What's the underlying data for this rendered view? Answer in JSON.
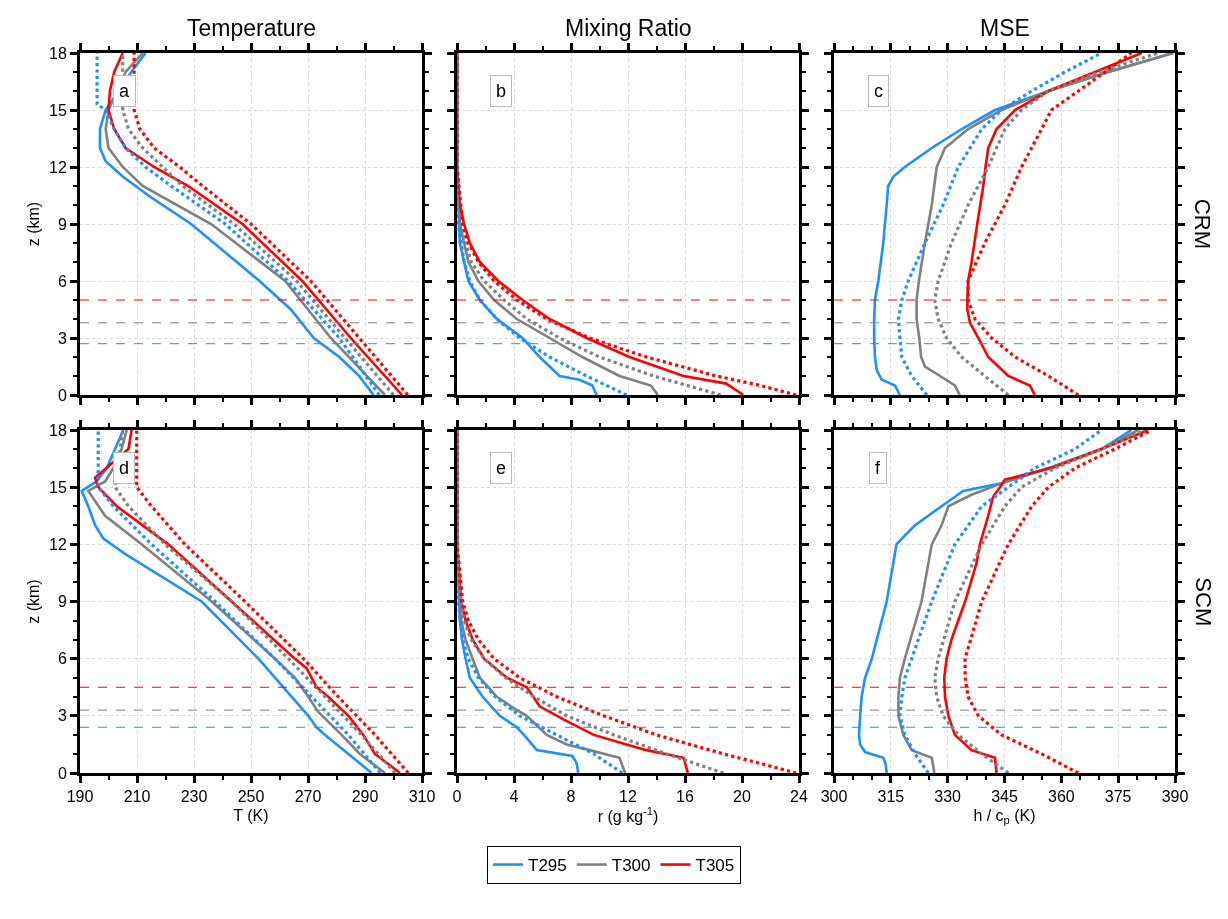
{
  "chart_data": [
    {
      "type": "line",
      "title": "Temperature",
      "ylabel": "z (km)",
      "annotations": [
        "a"
      ],
      "grid": true,
      "legend": "bottom",
      "tick_labels": "y",
      "xlim": [
        190,
        310
      ],
      "xticks": [
        190,
        {
          "value": 200,
          "label": null
        },
        210,
        {
          "value": 220,
          "label": null
        },
        230,
        {
          "value": 240,
          "label": null
        },
        250,
        {
          "value": 260,
          "label": null
        },
        270,
        {
          "value": 280,
          "label": null
        },
        290,
        {
          "value": 300,
          "label": null
        },
        310
      ],
      "ylim": [
        0,
        18
      ],
      "yticks": [
        0,
        {
          "value": 1,
          "label": null
        },
        {
          "value": 2,
          "label": null
        },
        3,
        {
          "value": 4,
          "label": null
        },
        {
          "value": 5,
          "label": null
        },
        6,
        {
          "value": 7,
          "label": null
        },
        {
          "value": 8,
          "label": null
        },
        9,
        {
          "value": 10,
          "label": null
        },
        {
          "value": 11,
          "label": null
        },
        12,
        {
          "value": 13,
          "label": null
        },
        {
          "value": 14,
          "label": null
        },
        15,
        {
          "value": 16,
          "label": null
        },
        {
          "value": 17,
          "label": null
        },
        18
      ],
      "ref_lines": [
        {
          "axis": "y",
          "value": 5.0,
          "color": "#ff0000",
          "line_style": "dashed"
        },
        {
          "axis": "y",
          "value": 3.8,
          "color": "#808080",
          "line_style": "dashed"
        },
        {
          "axis": "y",
          "value": 2.7,
          "color": "#1e90ff",
          "line_style": "dashed"
        }
      ],
      "series": [
        {
          "name": "T295",
          "color": "#1e90ff",
          "line_style": "solid",
          "x": [
            293,
            288,
            281,
            272,
            264,
            253,
            241,
            229,
            214,
            205,
            199,
            197,
            197,
            199,
            208,
            213
          ],
          "values": [
            0,
            1,
            2,
            3,
            4.5,
            6,
            7.5,
            9,
            10.5,
            11.5,
            12.3,
            13,
            14,
            15,
            17,
            18
          ]
        },
        {
          "name": "T300",
          "color": "#808080",
          "line_style": "solid",
          "x": [
            297,
            278,
            262,
            236,
            212,
            205,
            200,
            199,
            200,
            206,
            212
          ],
          "values": [
            0,
            3,
            6,
            9,
            11,
            12,
            13,
            14,
            15,
            17,
            18
          ]
        },
        {
          "name": "T305",
          "color": "#ff0000",
          "line_style": "solid",
          "x": [
            303,
            285,
            268,
            247,
            228,
            216,
            206,
            202,
            200,
            200.5,
            202,
            205
          ],
          "values": [
            0,
            3,
            6,
            9,
            11,
            12,
            13,
            14,
            15,
            16,
            17,
            18
          ]
        },
        {
          "color": "#1e90ff",
          "line_style": "dotted",
          "x": [
            295,
            281,
            263,
            241,
            222,
            213,
            206,
            202,
            199,
            196,
            196
          ],
          "values": [
            0,
            3,
            6,
            9,
            11,
            12,
            13,
            14,
            15,
            15.3,
            18
          ]
        },
        {
          "color": "#808080",
          "line_style": "dotted",
          "x": [
            300,
            283,
            266,
            244,
            226,
            219,
            212,
            207,
            205,
            205
          ],
          "values": [
            0,
            3,
            6,
            9,
            11,
            12,
            13,
            14,
            15,
            18
          ]
        },
        {
          "color": "#ff0000",
          "line_style": "dotted",
          "x": [
            305,
            288,
            271,
            250,
            233,
            225,
            216,
            211,
            209,
            209
          ],
          "values": [
            0,
            3,
            6,
            9,
            11,
            12,
            13,
            14,
            15,
            18
          ]
        }
      ]
    },
    {
      "type": "line",
      "title": "Mixing Ratio",
      "annotations": [
        "b"
      ],
      "grid": true,
      "tick_labels": false,
      "xlim": [
        0,
        24
      ],
      "xticks": [
        0,
        {
          "value": 2,
          "label": null
        },
        4,
        {
          "value": 6,
          "label": null
        },
        8,
        {
          "value": 10,
          "label": null
        },
        12,
        {
          "value": 14,
          "label": null
        },
        16,
        {
          "value": 18,
          "label": null
        },
        20,
        {
          "value": 22,
          "label": null
        },
        24
      ],
      "ylim": [
        0,
        18
      ],
      "yticks": [
        0,
        {
          "value": 1,
          "label": null
        },
        {
          "value": 2,
          "label": null
        },
        3,
        {
          "value": 4,
          "label": null
        },
        {
          "value": 5,
          "label": null
        },
        6,
        {
          "value": 7,
          "label": null
        },
        {
          "value": 8,
          "label": null
        },
        9,
        {
          "value": 10,
          "label": null
        },
        {
          "value": 11,
          "label": null
        },
        12,
        {
          "value": 13,
          "label": null
        },
        {
          "value": 14,
          "label": null
        },
        15,
        {
          "value": 16,
          "label": null
        },
        {
          "value": 17,
          "label": null
        },
        18
      ],
      "ref_lines": [
        {
          "axis": "y",
          "value": 5.0,
          "color": "#ff0000",
          "line_style": "dashed"
        },
        {
          "axis": "y",
          "value": 3.8,
          "color": "#808080",
          "line_style": "dashed"
        },
        {
          "axis": "y",
          "value": 2.7,
          "color": "#1e90ff",
          "line_style": "dashed"
        }
      ],
      "series": [
        {
          "color": "#1e90ff",
          "line_style": "solid",
          "x": [
            9.8,
            9.5,
            8.6,
            7.2,
            5.8,
            4.6,
            2.8,
            1.6,
            0.8,
            0.5,
            0.2,
            0,
            0
          ],
          "values": [
            0,
            0.5,
            0.8,
            1,
            2,
            3,
            4,
            5,
            6,
            7,
            8,
            12,
            18
          ]
        },
        {
          "color": "#808080",
          "line_style": "solid",
          "x": [
            14.1,
            13.6,
            11.4,
            8.8,
            6.5,
            4.2,
            2.6,
            1.5,
            0.8,
            0.5,
            0.2,
            0,
            0
          ],
          "values": [
            0,
            0.5,
            1,
            2,
            3,
            4,
            5,
            6,
            7,
            8,
            9,
            12,
            18
          ]
        },
        {
          "color": "#ff0000",
          "line_style": "solid",
          "x": [
            20.1,
            18.9,
            15.9,
            12.1,
            9.1,
            6.5,
            4.6,
            2.9,
            1.6,
            0.9,
            0.5,
            0.2,
            0,
            0
          ],
          "values": [
            0,
            0.6,
            1,
            2,
            3,
            4,
            5,
            6,
            7,
            8,
            9,
            10,
            12,
            18
          ]
        },
        {
          "color": "#1e90ff",
          "line_style": "dotted",
          "x": [
            11.9,
            9.1,
            6.5,
            4.4,
            2.8,
            1.6,
            0.9,
            0.5,
            0.1,
            0,
            0
          ],
          "values": [
            0,
            1,
            2,
            3,
            4,
            5,
            6,
            7,
            9,
            12,
            18
          ]
        },
        {
          "color": "#808080",
          "line_style": "dotted",
          "x": [
            18.5,
            13.8,
            10,
            7.2,
            4.9,
            3.3,
            1.9,
            1.0,
            0.6,
            0.3,
            0,
            0
          ],
          "values": [
            0,
            1,
            2,
            3,
            4,
            5,
            6,
            7,
            8,
            9,
            12,
            18
          ]
        },
        {
          "color": "#ff0000",
          "line_style": "dotted",
          "x": [
            23.8,
            21.3,
            18.2,
            13.3,
            9.3,
            6.3,
            4.2,
            2.6,
            1.5,
            0.8,
            0.4,
            0,
            0
          ],
          "values": [
            0,
            0.5,
            1,
            2,
            3,
            4,
            5,
            6,
            7,
            8,
            9,
            12,
            18
          ]
        }
      ]
    },
    {
      "type": "line",
      "title": "MSE",
      "annotations": [
        "c",
        "CRM"
      ],
      "grid": true,
      "tick_labels": false,
      "xlim": [
        300,
        390
      ],
      "xticks": [
        300,
        {
          "value": 305,
          "label": null
        },
        {
          "value": 310,
          "label": null
        },
        315,
        {
          "value": 320,
          "label": null
        },
        {
          "value": 325,
          "label": null
        },
        330,
        {
          "value": 335,
          "label": null
        },
        {
          "value": 340,
          "label": null
        },
        345,
        {
          "value": 350,
          "label": null
        },
        {
          "value": 355,
          "label": null
        },
        360,
        {
          "value": 365,
          "label": null
        },
        {
          "value": 370,
          "label": null
        },
        375,
        {
          "value": 380,
          "label": null
        },
        {
          "value": 385,
          "label": null
        },
        390
      ],
      "ylim": [
        0,
        18
      ],
      "yticks": [
        0,
        {
          "value": 1,
          "label": null
        },
        {
          "value": 2,
          "label": null
        },
        3,
        {
          "value": 4,
          "label": null
        },
        {
          "value": 5,
          "label": null
        },
        6,
        {
          "value": 7,
          "label": null
        },
        {
          "value": 8,
          "label": null
        },
        9,
        {
          "value": 10,
          "label": null
        },
        {
          "value": 11,
          "label": null
        },
        12,
        {
          "value": 13,
          "label": null
        },
        {
          "value": 14,
          "label": null
        },
        15,
        {
          "value": 16,
          "label": null
        },
        {
          "value": 17,
          "label": null
        },
        18
      ],
      "ref_lines": [
        {
          "axis": "y",
          "value": 5.0,
          "color": "#ff0000",
          "line_style": "dashed"
        },
        {
          "axis": "y",
          "value": 3.8,
          "color": "#808080",
          "line_style": "dashed"
        },
        {
          "axis": "y",
          "value": 2.7,
          "color": "#1e90ff",
          "line_style": "dashed"
        }
      ],
      "series": [
        {
          "color": "#1e90ff",
          "line_style": "solid",
          "x": [
            317.4,
            316.1,
            312.6,
            311.3,
            310.8,
            310.6,
            310.6,
            310.8,
            311.7,
            313,
            313.9,
            314.3,
            315.7,
            318.7,
            325.8,
            333.7,
            342.5,
            356.6,
            372.4,
            389.5
          ],
          "values": [
            0,
            0.5,
            0.8,
            1.3,
            2,
            3,
            4,
            5,
            6,
            8,
            10,
            11,
            11.5,
            12,
            13,
            14,
            15,
            16,
            17,
            18
          ]
        },
        {
          "color": "#808080",
          "line_style": "solid",
          "x": [
            333.2,
            331.9,
            328,
            324,
            323,
            322.5,
            321.8,
            321.8,
            322.4,
            324,
            325.8,
            327.1,
            329.3,
            335.4,
            344.2,
            356.6,
            372.4,
            389.5
          ],
          "values": [
            0,
            0.5,
            1,
            1.5,
            2,
            3,
            4,
            5,
            6,
            8,
            10,
            12,
            13,
            14,
            15,
            16,
            17,
            18
          ]
        },
        {
          "color": "#ff0000",
          "line_style": "solid",
          "x": [
            353,
            351.7,
            346,
            343.4,
            340.7,
            338.1,
            335.9,
            335.2,
            335.2,
            335.4,
            336.3,
            337.8,
            339.4,
            340,
            340.7,
            342.9,
            347.8,
            356.6,
            368.9,
            381.2
          ],
          "values": [
            0,
            0.5,
            1,
            1.5,
            2,
            3,
            3.8,
            4.5,
            5,
            6,
            7,
            9,
            11,
            12,
            13,
            14,
            15,
            16,
            17,
            18
          ]
        },
        {
          "color": "#1e90ff",
          "line_style": "dotted",
          "x": [
            324.5,
            320.5,
            317.9,
            317.4,
            317,
            317.9,
            319.6,
            324,
            328.8,
            332.8,
            339,
            344.2,
            352.2,
            361,
            370.6
          ],
          "values": [
            0,
            1,
            2,
            3,
            4,
            5,
            6,
            8,
            10,
            12,
            14,
            15,
            16,
            17,
            18
          ]
        },
        {
          "color": "#808080",
          "line_style": "dotted",
          "x": [
            346,
            339.8,
            333.7,
            329.7,
            327.5,
            326.6,
            327.5,
            331,
            335.4,
            340.7,
            345.1,
            349.5,
            356.6,
            370,
            385.6
          ],
          "values": [
            0,
            1,
            2,
            3,
            4,
            5,
            6,
            8,
            10,
            12,
            14,
            15,
            16,
            17,
            18
          ]
        },
        {
          "color": "#ff0000",
          "line_style": "dotted",
          "x": [
            364.5,
            356.6,
            347.8,
            341.6,
            337.2,
            335.4,
            335.4,
            339.8,
            345.1,
            349.5,
            354.8,
            357.4,
            364.5,
            371.5,
            378.5
          ],
          "values": [
            0,
            1,
            2,
            3,
            4,
            5,
            6,
            8,
            10,
            12,
            14,
            15,
            16,
            17,
            18
          ]
        }
      ]
    },
    {
      "type": "line",
      "xlabel": "T (K)",
      "ylabel": "z (km)",
      "annotations": [
        "d"
      ],
      "grid": true,
      "xlim": [
        190,
        310
      ],
      "xticks": [
        190,
        {
          "value": 200,
          "label": null
        },
        210,
        {
          "value": 220,
          "label": null
        },
        230,
        {
          "value": 240,
          "label": null
        },
        250,
        {
          "value": 260,
          "label": null
        },
        270,
        {
          "value": 280,
          "label": null
        },
        290,
        {
          "value": 300,
          "label": null
        },
        310
      ],
      "ylim": [
        0,
        18
      ],
      "yticks": [
        0,
        {
          "value": 1,
          "label": null
        },
        {
          "value": 2,
          "label": null
        },
        3,
        {
          "value": 4,
          "label": null
        },
        {
          "value": 5,
          "label": null
        },
        6,
        {
          "value": 7,
          "label": null
        },
        {
          "value": 8,
          "label": null
        },
        9,
        {
          "value": 10,
          "label": null
        },
        {
          "value": 11,
          "label": null
        },
        12,
        {
          "value": 13,
          "label": null
        },
        {
          "value": 14,
          "label": null
        },
        15,
        {
          "value": 16,
          "label": null
        },
        {
          "value": 17,
          "label": null
        },
        18
      ],
      "ref_lines": [
        {
          "axis": "y",
          "value": 4.5,
          "color": "#ff0000",
          "line_style": "dashed"
        },
        {
          "axis": "y",
          "value": 3.3,
          "color": "#808080",
          "line_style": "dashed"
        },
        {
          "axis": "y",
          "value": 2.4,
          "color": "#1e90ff",
          "line_style": "dashed"
        }
      ],
      "series": [
        {
          "color": "#1e90ff",
          "line_style": "solid",
          "x": [
            292.3,
            284.2,
            276,
            273,
            270.1,
            264.3,
            252.6,
            232.7,
            205.8,
            198.2,
            195.3,
            192.9,
            190.6,
            195.8,
            199.4,
            202.3,
            205.2
          ],
          "values": [
            0,
            1,
            2,
            2.4,
            3,
            4,
            6,
            9,
            11.5,
            12.3,
            13,
            14,
            14.8,
            15.3,
            16,
            17,
            18
          ]
        },
        {
          "color": "#808080",
          "line_style": "solid",
          "x": [
            297,
            288.2,
            281.8,
            273.6,
            270.1,
            265.4,
            258.4,
            236.2,
            211.6,
            198.8,
            192.9,
            198.8,
            201.7,
            204.6,
            206.4
          ],
          "values": [
            0,
            1,
            2,
            3.2,
            4,
            5,
            6,
            9,
            12,
            13.5,
            14.8,
            15.3,
            16,
            17,
            18
          ]
        },
        {
          "color": "#ff0000",
          "line_style": "solid",
          "x": [
            302.3,
            293.5,
            289.4,
            284.2,
            277.1,
            273,
            269.5,
            265.4,
            243.2,
            221,
            202.9,
            196.4,
            195.3,
            207,
            208.1
          ],
          "values": [
            0,
            1,
            2,
            3,
            4,
            4.5,
            5.5,
            6,
            9,
            12,
            14,
            15,
            15.5,
            17,
            18
          ]
        },
        {
          "color": "#1e90ff",
          "line_style": "dotted",
          "x": [
            295.3,
            284.2,
            271.3,
            258.4,
            237.4,
            215.1,
            201.7,
            196.4,
            196.4
          ],
          "values": [
            0,
            2,
            4,
            6,
            9,
            12,
            14,
            15,
            18
          ]
        },
        {
          "color": "#808080",
          "line_style": "dotted",
          "x": [
            300.5,
            288.8,
            276,
            263.1,
            243.2,
            219.8,
            207,
            202.3,
            205
          ],
          "values": [
            0,
            2,
            4,
            6,
            9,
            12,
            14,
            15,
            18
          ]
        },
        {
          "color": "#ff0000",
          "line_style": "dotted",
          "x": [
            305.2,
            293.5,
            280.6,
            268.4,
            247.9,
            226.8,
            215.1,
            209.9,
            209.9
          ],
          "values": [
            0,
            2,
            4,
            6,
            9,
            12,
            14,
            15,
            18
          ]
        }
      ]
    },
    {
      "type": "line",
      "xlabel": "r (g kg$^{-1}$)",
      "annotations": [
        "e"
      ],
      "grid": true,
      "tick_labels": "x",
      "xlim": [
        0,
        24
      ],
      "xticks": [
        0,
        {
          "value": 2,
          "label": null
        },
        4,
        {
          "value": 6,
          "label": null
        },
        8,
        {
          "value": 10,
          "label": null
        },
        12,
        {
          "value": 14,
          "label": null
        },
        16,
        {
          "value": 18,
          "label": null
        },
        20,
        {
          "value": 22,
          "label": null
        },
        24
      ],
      "ylim": [
        0,
        18
      ],
      "yticks": [
        0,
        {
          "value": 1,
          "label": null
        },
        {
          "value": 2,
          "label": null
        },
        3,
        {
          "value": 4,
          "label": null
        },
        {
          "value": 5,
          "label": null
        },
        6,
        {
          "value": 7,
          "label": null
        },
        {
          "value": 8,
          "label": null
        },
        9,
        {
          "value": 10,
          "label": null
        },
        {
          "value": 11,
          "label": null
        },
        12,
        {
          "value": 13,
          "label": null
        },
        {
          "value": 14,
          "label": null
        },
        15,
        {
          "value": 16,
          "label": null
        },
        {
          "value": 17,
          "label": null
        },
        18
      ],
      "ref_lines": [
        {
          "axis": "y",
          "value": 4.5,
          "color": "#ff0000",
          "line_style": "dashed"
        },
        {
          "axis": "y",
          "value": 3.3,
          "color": "#808080",
          "line_style": "dashed"
        },
        {
          "axis": "y",
          "value": 2.4,
          "color": "#1e90ff",
          "line_style": "dashed"
        }
      ],
      "series": [
        {
          "color": "#1e90ff",
          "line_style": "solid",
          "x": [
            8.5,
            8.4,
            8.1,
            5.6,
            4.7,
            4.2,
            3.0,
            1.8,
            0.9,
            0.6,
            0.35,
            0.2,
            0,
            0
          ],
          "values": [
            0,
            0.5,
            0.9,
            1.2,
            2,
            2.4,
            3,
            4,
            5,
            6,
            7,
            8,
            12,
            18
          ]
        },
        {
          "color": "#808080",
          "line_style": "solid",
          "x": [
            11.8,
            11.4,
            9.3,
            7.7,
            6.3,
            4.9,
            4.2,
            2.8,
            1.6,
            1.1,
            0.6,
            0.3,
            0,
            0
          ],
          "values": [
            0,
            0.8,
            1.2,
            1.5,
            2,
            3,
            3.3,
            4,
            5,
            6,
            7,
            8,
            12,
            18
          ]
        },
        {
          "color": "#ff0000",
          "line_style": "solid",
          "x": [
            16.2,
            15.9,
            13.3,
            11.9,
            9.6,
            7.5,
            5.8,
            4.9,
            3.5,
            1.9,
            1.1,
            0.6,
            0.3,
            0,
            0
          ],
          "values": [
            0,
            0.8,
            1.2,
            1.5,
            2,
            2.8,
            3.5,
            4.5,
            5,
            6,
            7,
            8,
            9,
            12,
            18
          ]
        },
        {
          "color": "#1e90ff",
          "line_style": "dotted",
          "x": [
            11.6,
            9.6,
            7.0,
            4.4,
            2.7,
            1.5,
            0.8,
            0.4,
            0.1,
            0,
            0
          ],
          "values": [
            0,
            1,
            2,
            3,
            4,
            5,
            6,
            7,
            9,
            12,
            18
          ]
        },
        {
          "color": "#808080",
          "line_style": "dotted",
          "x": [
            18.7,
            14.7,
            11,
            7.7,
            5.4,
            3.4,
            1.9,
            1.0,
            0.5,
            0.1,
            0,
            0
          ],
          "values": [
            0,
            1,
            2,
            3,
            4,
            5,
            6,
            7,
            8,
            10,
            12,
            18
          ]
        },
        {
          "color": "#ff0000",
          "line_style": "dotted",
          "x": [
            23.8,
            21.3,
            18.7,
            14,
            10.3,
            7.0,
            4.4,
            2.6,
            1.5,
            0.8,
            0.4,
            0,
            0
          ],
          "values": [
            0,
            0.5,
            1,
            2,
            3,
            4,
            5,
            6,
            7,
            8,
            9,
            12,
            18
          ]
        }
      ]
    },
    {
      "type": "line",
      "xlabel": "h / c$_{p}$ (K)",
      "annotations": [
        "f",
        "SCM"
      ],
      "grid": true,
      "tick_labels": "x",
      "xlim": [
        300,
        390
      ],
      "xticks": [
        300,
        {
          "value": 305,
          "label": null
        },
        {
          "value": 310,
          "label": null
        },
        315,
        {
          "value": 320,
          "label": null
        },
        {
          "value": 325,
          "label": null
        },
        330,
        {
          "value": 335,
          "label": null
        },
        {
          "value": 340,
          "label": null
        },
        345,
        {
          "value": 350,
          "label": null
        },
        {
          "value": 355,
          "label": null
        },
        360,
        {
          "value": 365,
          "label": null
        },
        {
          "value": 370,
          "label": null
        },
        375,
        {
          "value": 380,
          "label": null
        },
        {
          "value": 385,
          "label": null
        },
        390
      ],
      "ylim": [
        0,
        18
      ],
      "yticks": [
        0,
        {
          "value": 1,
          "label": null
        },
        {
          "value": 2,
          "label": null
        },
        3,
        {
          "value": 4,
          "label": null
        },
        {
          "value": 5,
          "label": null
        },
        6,
        {
          "value": 7,
          "label": null
        },
        {
          "value": 8,
          "label": null
        },
        9,
        {
          "value": 10,
          "label": null
        },
        {
          "value": 11,
          "label": null
        },
        12,
        {
          "value": 13,
          "label": null
        },
        {
          "value": 14,
          "label": null
        },
        15,
        {
          "value": 16,
          "label": null
        },
        {
          "value": 17,
          "label": null
        },
        18
      ],
      "ref_lines": [
        {
          "axis": "y",
          "value": 4.5,
          "color": "#ff0000",
          "line_style": "dashed"
        },
        {
          "axis": "y",
          "value": 3.3,
          "color": "#808080",
          "line_style": "dashed"
        },
        {
          "axis": "y",
          "value": 2.4,
          "color": "#1e90ff",
          "line_style": "dashed"
        }
      ],
      "series": [
        {
          "color": "#1e90ff",
          "line_style": "solid",
          "x": [
            313.9,
            313.6,
            313,
            308.2,
            306.9,
            306.6,
            306.9,
            307.3,
            308.2,
            310,
            313.9,
            316.5,
            317.9,
            321.4,
            328.4,
            334.1,
            344.2,
            356.6,
            370.6,
            378.5
          ],
          "values": [
            0,
            0.5,
            0.8,
            1.1,
            1.5,
            2,
            3,
            4,
            5,
            6,
            9,
            12,
            12.3,
            13,
            14,
            14.8,
            15.2,
            16,
            17,
            18
          ]
        },
        {
          "color": "#808080",
          "line_style": "solid",
          "x": [
            326.5,
            325.8,
            320.5,
            318.3,
            317,
            317,
            317.4,
            318.7,
            323.1,
            325.8,
            328.4,
            330.2,
            336.3,
            344.2,
            356.6,
            370.6,
            380.3
          ],
          "values": [
            0,
            0.8,
            1.2,
            2,
            3,
            4,
            5,
            6,
            9,
            12,
            13,
            14,
            14.6,
            15.2,
            16,
            17,
            18
          ]
        },
        {
          "color": "#ff0000",
          "line_style": "solid",
          "x": [
            342.9,
            342.5,
            336.3,
            331.9,
            330.2,
            329.3,
            329.1,
            329.7,
            331,
            334.6,
            337.6,
            338.5,
            340.7,
            342,
            343.8,
            345.1,
            357.4,
            370.6,
            382.9
          ],
          "values": [
            0,
            0.8,
            1.2,
            2,
            3,
            4,
            5,
            6,
            7,
            9,
            11,
            12,
            13.5,
            14.5,
            15,
            15.4,
            16,
            17,
            18
          ]
        },
        {
          "color": "#1e90ff",
          "line_style": "dotted",
          "x": [
            324.9,
            321.4,
            318.7,
            317.4,
            317.9,
            318.7,
            320.5,
            325.8,
            331.9,
            339,
            346,
            353,
            363.6,
            370.6
          ],
          "values": [
            0,
            1,
            2,
            3,
            4,
            5,
            6,
            9,
            12,
            14,
            15,
            16,
            17,
            18
          ]
        },
        {
          "color": "#808080",
          "line_style": "dotted",
          "x": [
            346,
            339,
            332.8,
            328.8,
            327.1,
            326.6,
            327.5,
            331.9,
            339,
            345.1,
            349.5,
            358.3,
            370.6,
            382.1
          ],
          "values": [
            0,
            1,
            2,
            3,
            4,
            5,
            6,
            9,
            12,
            14,
            15,
            16,
            17,
            18
          ]
        },
        {
          "color": "#ff0000",
          "line_style": "dotted",
          "x": [
            364.5,
            354.8,
            344.2,
            338.1,
            335.4,
            334.6,
            334.6,
            339,
            346,
            352.2,
            356.6,
            363.6,
            374.1,
            383.8
          ],
          "values": [
            0,
            1,
            2,
            3,
            4,
            5,
            6,
            9,
            12,
            14,
            15,
            16,
            17,
            18
          ]
        }
      ]
    }
  ]
}
